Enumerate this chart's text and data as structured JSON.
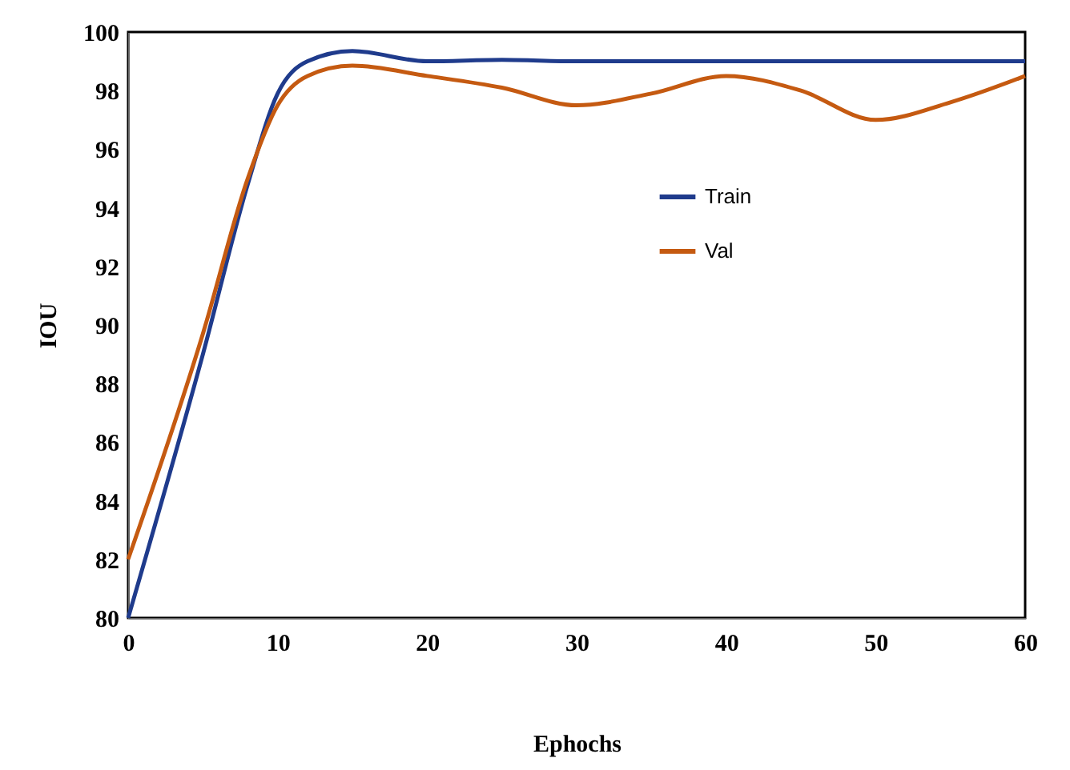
{
  "chart_data": {
    "type": "line",
    "xlabel": "Ephochs",
    "ylabel": "IOU",
    "x": [
      0,
      5,
      8,
      10,
      12,
      15,
      20,
      25,
      30,
      35,
      40,
      45,
      50,
      55,
      60
    ],
    "series": [
      {
        "name": "Train",
        "color": "#1f3b8c",
        "values": [
          80,
          89,
          94.8,
          97.9,
          99.0,
          99.35,
          99.0,
          99.05,
          99.0,
          99.0,
          99.0,
          99.0,
          99.0,
          99.0,
          99.0
        ]
      },
      {
        "name": "Val",
        "color": "#c55a11",
        "values": [
          82,
          89.7,
          95.0,
          97.5,
          98.5,
          98.85,
          98.5,
          98.1,
          97.5,
          97.9,
          98.5,
          98.0,
          97.0,
          97.6,
          98.5
        ]
      }
    ],
    "xlim": [
      0,
      60
    ],
    "xticks": [
      0,
      10,
      20,
      30,
      40,
      50,
      60
    ],
    "ylim": [
      80,
      100
    ],
    "yticks": [
      80,
      82,
      84,
      86,
      88,
      90,
      92,
      94,
      96,
      98,
      100
    ],
    "grid": false,
    "legend": "top right",
    "marker": "none",
    "line_style": "solid"
  }
}
